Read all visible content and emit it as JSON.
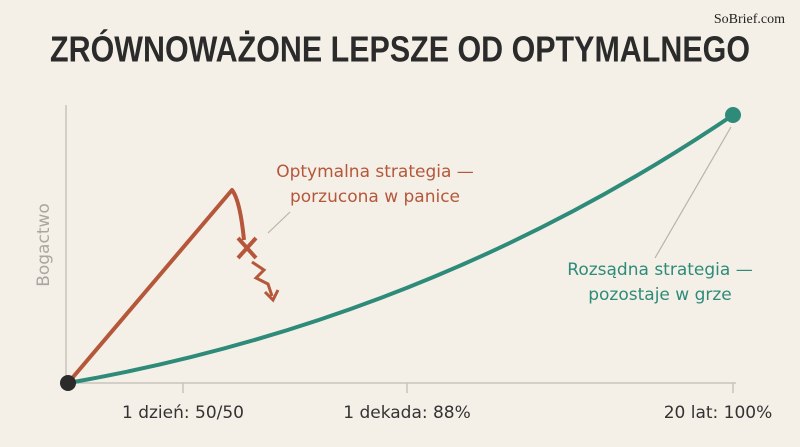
{
  "header": {
    "brand": "SoBrief.com",
    "title": "ZRÓWNOWAŻONE LEPSZE OD OPTYMALNEGO"
  },
  "axis": {
    "y_label": "Bogactwo",
    "x_labels": [
      "1 dzień: 50/50",
      "1 dekada: 88%",
      "20 lat: 100%"
    ]
  },
  "annotations": {
    "optimal": [
      "Optymalna strategia —",
      "porzucona w panice"
    ],
    "reasonable": [
      "Rozsądna strategia —",
      "pozostaje w grze"
    ]
  }
}
